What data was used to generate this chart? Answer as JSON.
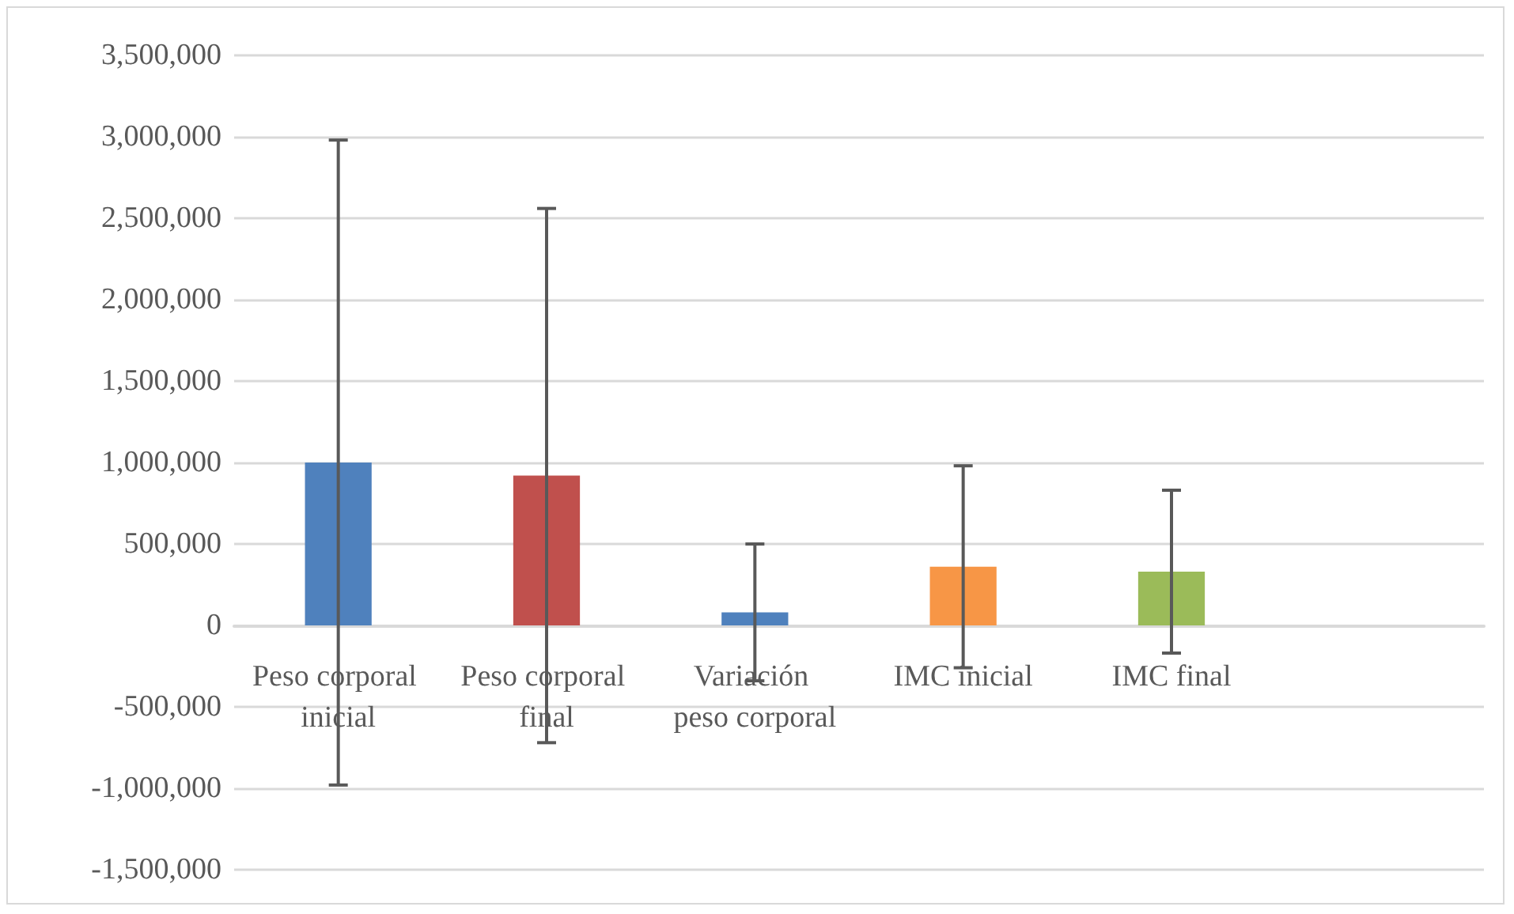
{
  "chart_data": {
    "type": "bar",
    "categories": [
      "Peso corporal inicial",
      "Peso corporal final",
      "Variación peso corporal",
      "IMC inicial",
      "IMC final",
      null
    ],
    "values": [
      1000000,
      920000,
      80000,
      360000,
      330000,
      null
    ],
    "colors": [
      "#4f81bd",
      "#c0504d",
      "#4f81bd",
      "#f79646",
      "#9bbb59",
      null
    ],
    "errors": [
      1980000,
      1640000,
      420000,
      620000,
      500000,
      null
    ],
    "ylim": [
      -1500000,
      3500000
    ],
    "yticks": [
      {
        "value": -1500000,
        "label": "-1,500,000"
      },
      {
        "value": -1000000,
        "label": "-1,000,000"
      },
      {
        "value": -500000,
        "label": "-500,000"
      },
      0,
      {
        "value": 500000,
        "label": "500,000"
      },
      {
        "value": 1000000,
        "label": "1,000,000"
      },
      {
        "value": 1500000,
        "label": "1,500,000"
      },
      {
        "value": 2000000,
        "label": "2,000,000"
      },
      {
        "value": 2500000,
        "label": "2,500,000"
      },
      {
        "value": 3000000,
        "label": "3,000,000"
      },
      {
        "value": 3500000,
        "label": "3,500,000"
      }
    ],
    "grid": "y"
  }
}
